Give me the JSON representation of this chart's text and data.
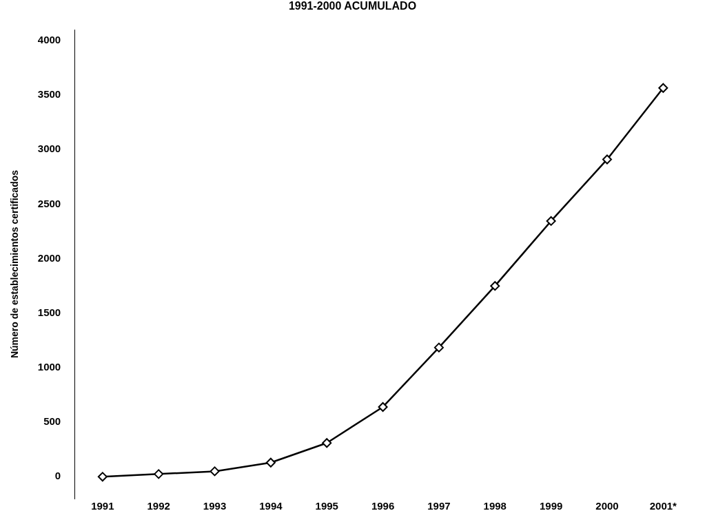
{
  "chart_data": {
    "type": "line",
    "title": "1991-2000 ACUMULADO",
    "ylabel": "Número de establecimientos certificados",
    "categories": [
      "1991",
      "1992",
      "1993",
      "1994",
      "1995",
      "1996",
      "1997",
      "1998",
      "1999",
      "2000",
      "2001*"
    ],
    "series": [
      {
        "color": "#000000",
        "values": [
          0,
          25,
          50,
          130,
          310,
          640,
          1185,
          1750,
          2345,
          2910,
          3565
        ]
      }
    ],
    "ylim": [
      -200,
      4100
    ],
    "yticks": [
      0,
      500,
      1000,
      1500,
      2000,
      2500,
      3000,
      3500,
      4000
    ],
    "grid": false,
    "legend": false,
    "marker": "diamond",
    "line_style": "solid"
  }
}
